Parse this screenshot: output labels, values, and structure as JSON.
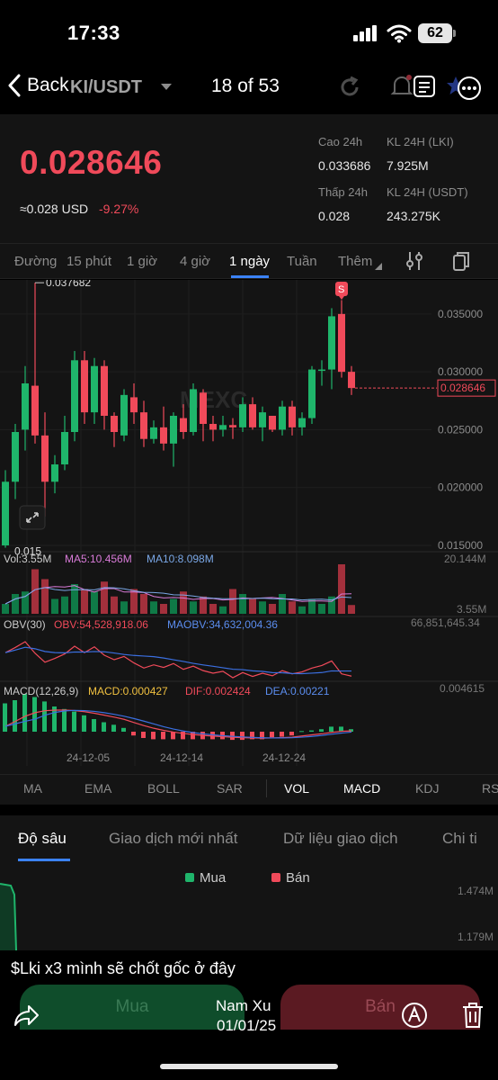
{
  "status": {
    "time": "17:33",
    "battery": "62"
  },
  "header": {
    "back_label": "Back",
    "pair": "KI/USDT",
    "counter": "18 of 53"
  },
  "price": {
    "last": "0.028646",
    "usd_approx": "≈0.028 USD",
    "change": "-9.27%",
    "high_label": "Cao 24h",
    "high_value": "0.033686",
    "low_label": "Thấp 24h",
    "low_value": "0.028",
    "vol_lki_label": "KL 24H (LKI)",
    "vol_lki_value": "7.925M",
    "vol_usdt_label": "KL 24H  (USDT)",
    "vol_usdt_value": "243.275K"
  },
  "timeframes": [
    "Đường",
    "15 phút",
    "1 giờ",
    "4 giờ",
    "1 ngày",
    "Tuần",
    "Thêm"
  ],
  "chart": {
    "y_ticks": [
      "0.035000",
      "0.030000",
      "0.025000",
      "0.020000",
      "0.015000"
    ],
    "max_label": "0.037682",
    "min_label": "0.015",
    "current_label": "0.028646",
    "watermark": "MEXC",
    "vol_title": "Vol:3.55M",
    "vol_ma5": "MA5:10.456M",
    "vol_ma10": "MA10:8.098M",
    "vol_top": "20.144M",
    "vol_bottom": "3.55M",
    "obv_title": "OBV(30)",
    "obv_val": "OBV:54,528,918.06",
    "maobv_val": "MAOBV:34,632,004.36",
    "obv_top": "66,851,645.34",
    "macd_title": "MACD(12,26,9)",
    "macd_val": "MACD:0.000427",
    "dif_val": "DIF:0.002424",
    "dea_val": "DEA:0.00221",
    "macd_top": "0.004615",
    "x_ticks": [
      "24-12-05",
      "24-12-14",
      "24-12-24"
    ],
    "marker": "S"
  },
  "indicators": [
    "MA",
    "EMA",
    "BOLL",
    "SAR",
    "VOL",
    "MACD",
    "KDJ",
    "RS"
  ],
  "lower_tabs": [
    "Độ sâu",
    "Giao dịch mới nhất",
    "Dữ liệu giao dịch",
    "Chi ti"
  ],
  "depth": {
    "buy": "Mua",
    "sell": "Bán",
    "tick1": "1.474M",
    "tick2": "1.179M"
  },
  "post": {
    "caption": "$Lki x3 mình sẽ chốt gốc ở đây",
    "author": "Nam Xu",
    "date": "01/01/25"
  },
  "footer": {
    "buy_label": "Mua",
    "sell_label": "Bán"
  },
  "chart_data": {
    "type": "candlestick",
    "ylim": [
      0.015,
      0.036
    ],
    "candles": [
      {
        "o": 0.015,
        "h": 0.0215,
        "l": 0.0148,
        "c": 0.0205
      },
      {
        "o": 0.0205,
        "h": 0.0255,
        "l": 0.019,
        "c": 0.0248
      },
      {
        "o": 0.025,
        "h": 0.0305,
        "l": 0.0232,
        "c": 0.029
      },
      {
        "o": 0.0288,
        "h": 0.0377,
        "l": 0.0238,
        "c": 0.0245
      },
      {
        "o": 0.0245,
        "h": 0.0265,
        "l": 0.0175,
        "c": 0.0205
      },
      {
        "o": 0.0205,
        "h": 0.0228,
        "l": 0.0195,
        "c": 0.022
      },
      {
        "o": 0.022,
        "h": 0.0262,
        "l": 0.0215,
        "c": 0.0248
      },
      {
        "o": 0.0248,
        "h": 0.0318,
        "l": 0.024,
        "c": 0.031
      },
      {
        "o": 0.031,
        "h": 0.0318,
        "l": 0.0255,
        "c": 0.0265
      },
      {
        "o": 0.0265,
        "h": 0.0312,
        "l": 0.0255,
        "c": 0.0305
      },
      {
        "o": 0.0305,
        "h": 0.031,
        "l": 0.025,
        "c": 0.0262
      },
      {
        "o": 0.0262,
        "h": 0.0265,
        "l": 0.0235,
        "c": 0.0248
      },
      {
        "o": 0.0245,
        "h": 0.0285,
        "l": 0.024,
        "c": 0.028
      },
      {
        "o": 0.0278,
        "h": 0.029,
        "l": 0.0255,
        "c": 0.0265
      },
      {
        "o": 0.0265,
        "h": 0.0275,
        "l": 0.0235,
        "c": 0.0242
      },
      {
        "o": 0.0242,
        "h": 0.0258,
        "l": 0.0238,
        "c": 0.0252
      },
      {
        "o": 0.0252,
        "h": 0.027,
        "l": 0.0232,
        "c": 0.0238
      },
      {
        "o": 0.0238,
        "h": 0.0265,
        "l": 0.0218,
        "c": 0.0262
      },
      {
        "o": 0.026,
        "h": 0.0272,
        "l": 0.0242,
        "c": 0.0248
      },
      {
        "o": 0.0248,
        "h": 0.029,
        "l": 0.0245,
        "c": 0.0285
      },
      {
        "o": 0.0282,
        "h": 0.0285,
        "l": 0.024,
        "c": 0.0255
      },
      {
        "o": 0.0255,
        "h": 0.0262,
        "l": 0.024,
        "c": 0.025
      },
      {
        "o": 0.025,
        "h": 0.0262,
        "l": 0.0244,
        "c": 0.0254
      },
      {
        "o": 0.0254,
        "h": 0.026,
        "l": 0.0242,
        "c": 0.0252
      },
      {
        "o": 0.0252,
        "h": 0.0278,
        "l": 0.0248,
        "c": 0.0272
      },
      {
        "o": 0.0272,
        "h": 0.0278,
        "l": 0.025,
        "c": 0.0252
      },
      {
        "o": 0.0252,
        "h": 0.027,
        "l": 0.024,
        "c": 0.0265
      },
      {
        "o": 0.0262,
        "h": 0.026,
        "l": 0.0248,
        "c": 0.025
      },
      {
        "o": 0.025,
        "h": 0.0275,
        "l": 0.0245,
        "c": 0.027
      },
      {
        "o": 0.027,
        "h": 0.0275,
        "l": 0.0245,
        "c": 0.0252
      },
      {
        "o": 0.0252,
        "h": 0.0265,
        "l": 0.0245,
        "c": 0.026
      },
      {
        "o": 0.026,
        "h": 0.0305,
        "l": 0.0255,
        "c": 0.0302
      },
      {
        "o": 0.0302,
        "h": 0.031,
        "l": 0.0288,
        "c": 0.0302
      },
      {
        "o": 0.0302,
        "h": 0.0355,
        "l": 0.0285,
        "c": 0.0348
      },
      {
        "o": 0.035,
        "h": 0.0362,
        "l": 0.0295,
        "c": 0.03
      },
      {
        "o": 0.03,
        "h": 0.0305,
        "l": 0.028,
        "c": 0.0286
      }
    ],
    "volume": [
      4,
      8,
      9,
      18,
      14,
      6,
      7,
      12,
      10,
      9,
      13,
      7,
      5,
      10,
      8,
      5,
      4,
      6,
      9,
      5,
      7,
      4,
      3,
      10,
      8,
      6,
      5,
      4,
      8,
      5,
      3,
      6,
      4,
      7,
      20,
      3.55
    ],
    "macd_hist": [
      0.0045,
      0.005,
      0.006,
      0.0055,
      0.0048,
      0.004,
      0.0036,
      0.0032,
      0.0026,
      0.002,
      0.0015,
      0.0011,
      0.0006,
      -0.0006,
      -0.001,
      -0.0012,
      -0.0012,
      -0.0012,
      -0.0012,
      -0.0012,
      -0.0012,
      -0.0012,
      -0.0012,
      -0.0013,
      -0.0013,
      -0.0012,
      -0.0012,
      -0.0009,
      -0.0008,
      -0.0006,
      0.0001,
      0.0002,
      0.0004,
      0.0008,
      0.0008,
      0.0004
    ]
  }
}
